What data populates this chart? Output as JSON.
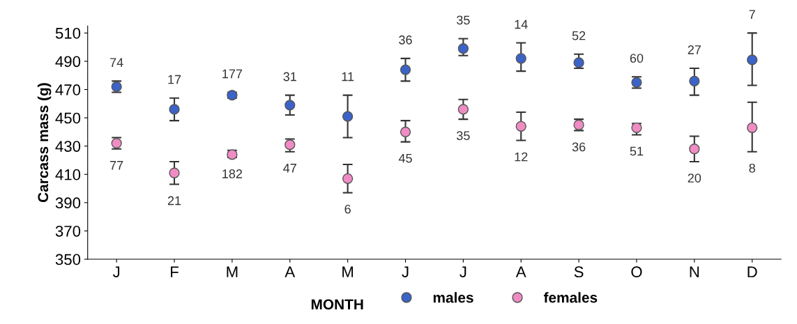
{
  "chart_data": {
    "type": "scatter",
    "xlabel": "MONTH",
    "ylabel": "Carcass mass (g)",
    "categories": [
      "J",
      "F",
      "M",
      "A",
      "M",
      "J",
      "J",
      "A",
      "S",
      "O",
      "N",
      "D"
    ],
    "ylim": [
      350,
      515
    ],
    "yticks": [
      350,
      370,
      390,
      410,
      430,
      450,
      470,
      490,
      510
    ],
    "grid": false,
    "legend": "bottom",
    "marker": "circle",
    "series": [
      {
        "name": "males",
        "color": "#3b63c8",
        "values": [
          472,
          456,
          466,
          459,
          451,
          484,
          499,
          492,
          489,
          475,
          476,
          491
        ],
        "errors": [
          [
            468,
            476
          ],
          [
            448,
            464
          ],
          [
            464,
            468
          ],
          [
            452,
            466
          ],
          [
            436,
            466
          ],
          [
            476,
            492
          ],
          [
            494,
            506
          ],
          [
            483,
            503
          ],
          [
            485,
            495
          ],
          [
            471,
            479
          ],
          [
            466,
            485
          ],
          [
            473,
            510
          ]
        ]
      },
      {
        "name": "females",
        "color": "#f08cc4",
        "values": [
          432,
          411,
          424,
          431,
          407,
          440,
          456,
          444,
          445,
          443,
          428,
          443
        ],
        "errors": [
          [
            428,
            436
          ],
          [
            403,
            419
          ],
          [
            422,
            427
          ],
          [
            426,
            435
          ],
          [
            397,
            417
          ],
          [
            433,
            448
          ],
          [
            449,
            463
          ],
          [
            434,
            454
          ],
          [
            441,
            449
          ],
          [
            438,
            446
          ],
          [
            419,
            437
          ],
          [
            426,
            461
          ]
        ]
      }
    ],
    "annotations": [
      "74",
      "17",
      "177",
      "31",
      "11",
      "36",
      "35",
      "14",
      "52",
      "60",
      "27",
      "7",
      "77",
      "21",
      "182",
      "47",
      "6",
      "45",
      "35",
      "12",
      "36",
      "51",
      "20",
      "8"
    ]
  }
}
